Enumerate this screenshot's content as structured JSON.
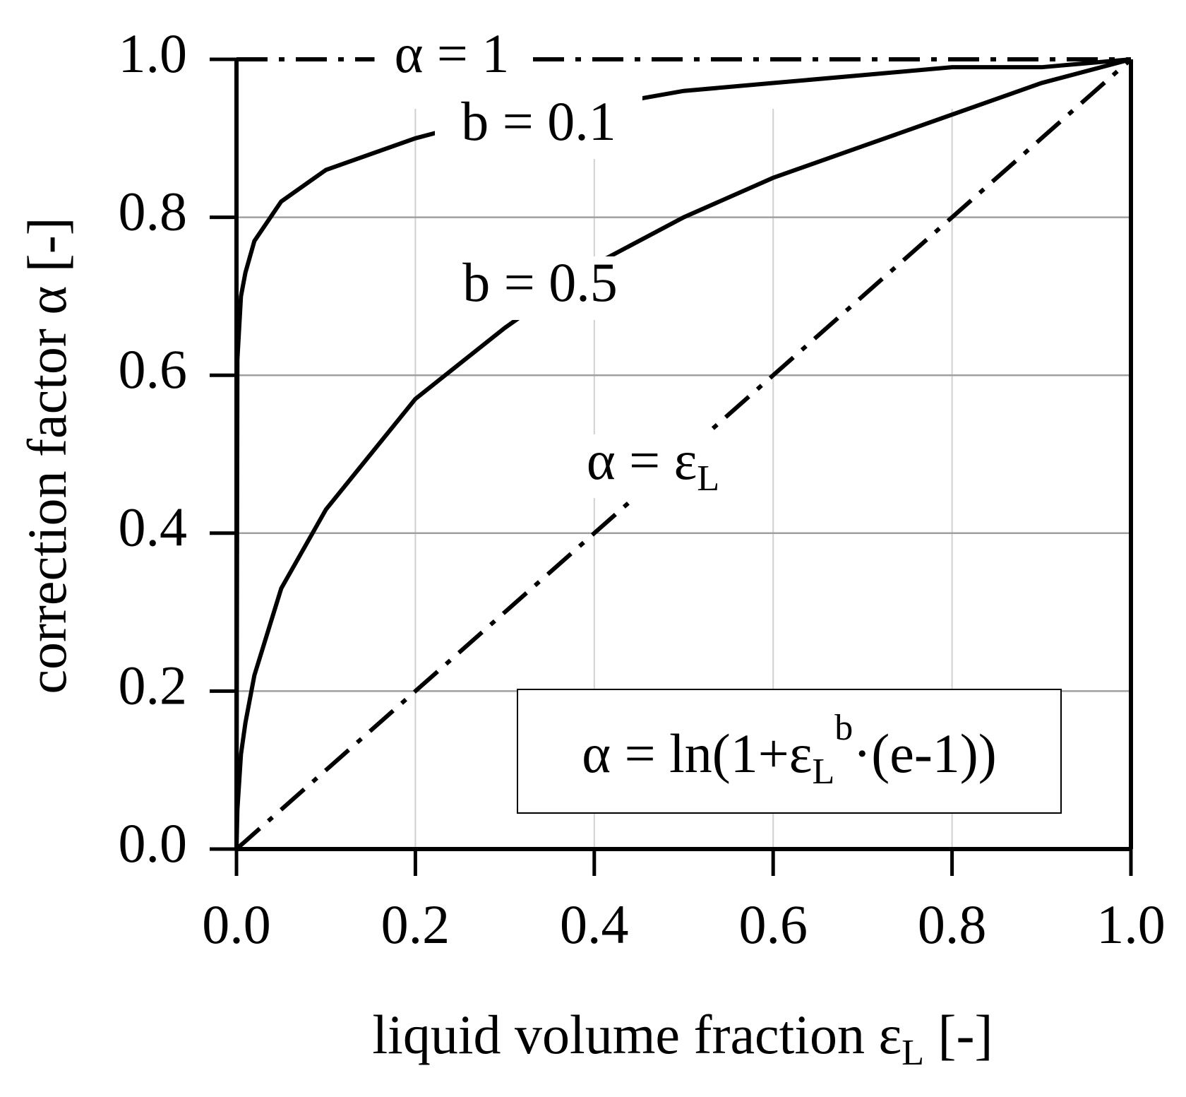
{
  "chart_data": {
    "type": "line",
    "x_label": {
      "text": "liquid volume fraction ε",
      "sub": "L",
      "after": " [-]"
    },
    "y_label": "correction factor α [-]",
    "x": [
      0,
      0.001,
      0.005,
      0.01,
      0.02,
      0.05,
      0.1,
      0.2,
      0.3,
      0.4,
      0.5,
      0.6,
      0.7,
      0.8,
      0.9,
      1.0
    ],
    "series": [
      {
        "name": "α = 1",
        "color": "#000000",
        "dash": "dashdot",
        "values": [
          1,
          1,
          1,
          1,
          1,
          1,
          1,
          1,
          1,
          1,
          1,
          1,
          1,
          1,
          1,
          1
        ]
      },
      {
        "name": "b = 0.1",
        "color": "#000000",
        "dash": "solid",
        "values": [
          0,
          0.62,
          0.7,
          0.73,
          0.77,
          0.82,
          0.86,
          0.9,
          0.93,
          0.94,
          0.96,
          0.97,
          0.98,
          0.99,
          0.99,
          1
        ]
      },
      {
        "name": "b = 0.5",
        "color": "#000000",
        "dash": "solid",
        "values": [
          0,
          0.05,
          0.12,
          0.16,
          0.22,
          0.33,
          0.43,
          0.57,
          0.66,
          0.74,
          0.8,
          0.85,
          0.89,
          0.93,
          0.97,
          1
        ]
      },
      {
        "name": "α = ε",
        "name_subscript": "L",
        "color": "#000000",
        "dash": "dashdot",
        "values": [
          0,
          0.001,
          0.005,
          0.01,
          0.02,
          0.05,
          0.1,
          0.2,
          0.3,
          0.4,
          0.5,
          0.6,
          0.7,
          0.8,
          0.9,
          1.0
        ]
      }
    ],
    "formula": {
      "lead": "α =  ln(1+ε",
      "sub": "L",
      "sup": "b",
      "tail": "·(e-1))"
    },
    "xlim": [
      0,
      1
    ],
    "ylim": [
      0,
      1
    ],
    "xticks": [
      {
        "value": 0,
        "label": "0.0"
      },
      {
        "value": 0.2,
        "label": "0.2"
      },
      {
        "value": 0.4,
        "label": "0.4"
      },
      {
        "value": 0.6,
        "label": "0.6"
      },
      {
        "value": 0.8,
        "label": "0.8"
      },
      {
        "value": 1,
        "label": "1.0"
      }
    ],
    "yticks": [
      {
        "value": 0,
        "label": "0.0"
      },
      {
        "value": 0.2,
        "label": "0.2"
      },
      {
        "value": 0.4,
        "label": "0.4"
      },
      {
        "value": 0.6,
        "label": "0.6"
      },
      {
        "value": 0.8,
        "label": "0.8"
      },
      {
        "value": 1,
        "label": "1.0"
      }
    ],
    "grid": true
  }
}
